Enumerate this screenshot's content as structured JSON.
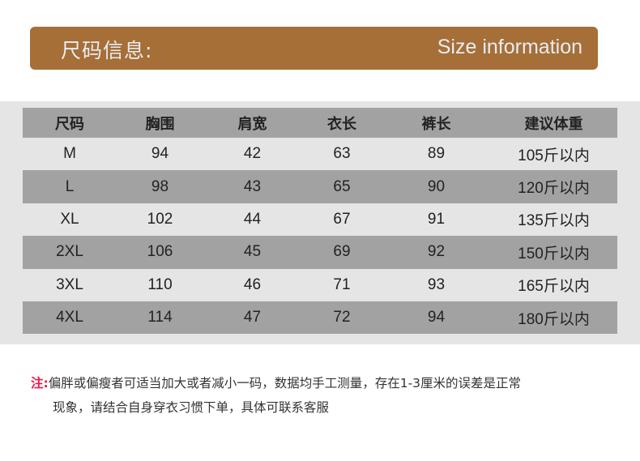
{
  "banner": {
    "title_cn": "尺码信息:",
    "title_en": "Size information",
    "color": "#a66f37"
  },
  "table": {
    "headers": [
      "尺码",
      "胸围",
      "肩宽",
      "衣长",
      "裤长",
      "建议体重"
    ],
    "rows": [
      [
        "M",
        "94",
        "42",
        "63",
        "89",
        "105斤以内"
      ],
      [
        "L",
        "98",
        "43",
        "65",
        "90",
        "120斤以内"
      ],
      [
        "XL",
        "102",
        "44",
        "67",
        "91",
        "135斤以内"
      ],
      [
        "2XL",
        "106",
        "45",
        "69",
        "92",
        "150斤以内"
      ],
      [
        "3XL",
        "110",
        "46",
        "71",
        "93",
        "165斤以内"
      ],
      [
        "4XL",
        "114",
        "47",
        "72",
        "94",
        "180斤以内"
      ]
    ]
  },
  "note": {
    "label": "注:",
    "line1": "偏胖或偏瘦者可适当加大或者减小一码，数据均手工测量，存在1-3厘米的误差是正常",
    "line2": "现象，请结合自身穿衣习惯下单，具体可联系客服",
    "label_color": "#e8174a"
  }
}
